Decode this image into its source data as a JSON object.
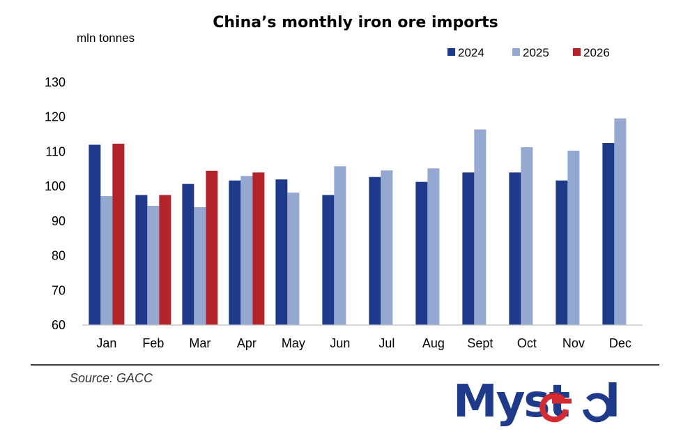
{
  "chart_data": {
    "type": "bar",
    "title": "China’s monthly iron ore imports",
    "ylabel": "mln tonnes",
    "xlabel": "",
    "ylim": [
      60,
      130
    ],
    "yticks": [
      60,
      70,
      80,
      90,
      100,
      110,
      120,
      130
    ],
    "grid": false,
    "legend_position": "top-right",
    "categories": [
      "Jan",
      "Feb",
      "Mar",
      "Apr",
      "May",
      "Jun",
      "Jul",
      "Aug",
      "Sept",
      "Oct",
      "Nov",
      "Dec"
    ],
    "series": [
      {
        "name": "2024",
        "color": "#1f3a8a",
        "values": [
          112.0,
          97.5,
          100.7,
          101.7,
          102.0,
          97.5,
          102.7,
          101.3,
          104.0,
          104.0,
          101.7,
          112.5
        ]
      },
      {
        "name": "2025",
        "color": "#94a8d0",
        "values": [
          97.2,
          94.4,
          94.0,
          103.0,
          98.2,
          105.8,
          104.6,
          105.2,
          116.4,
          111.3,
          110.3,
          119.6
        ]
      },
      {
        "name": "2026",
        "color": "#b3242a",
        "values": [
          112.3,
          97.5,
          104.5,
          104.0,
          null,
          null,
          null,
          null,
          null,
          null,
          null,
          null
        ]
      }
    ]
  },
  "source": "Source: GACC",
  "logo_text": "Mysteel",
  "colors": {
    "logo_blue": "#1f3a8a",
    "logo_red": "#d42a30"
  }
}
